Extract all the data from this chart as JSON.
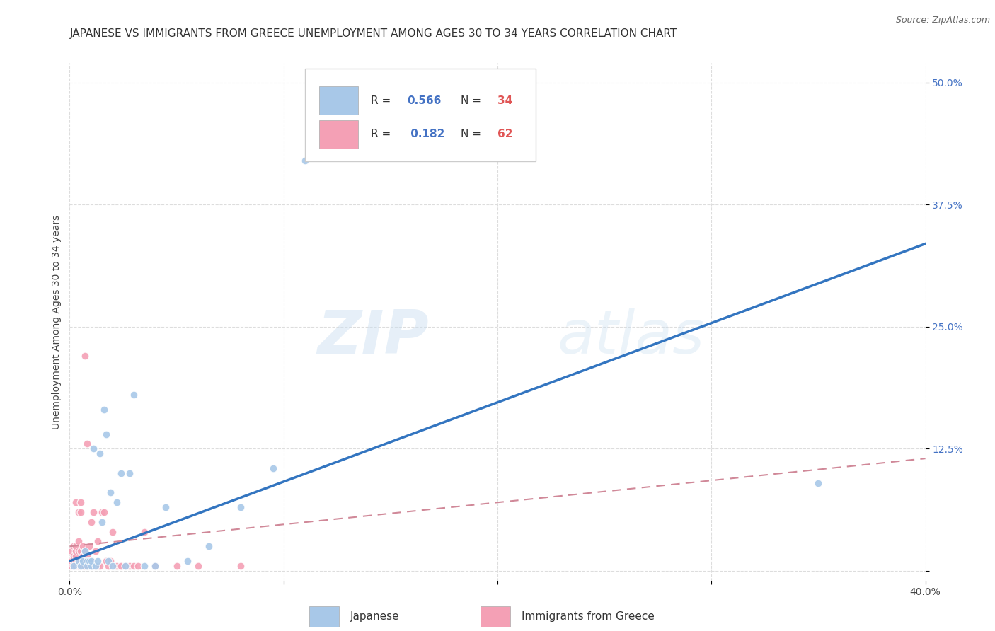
{
  "title": "JAPANESE VS IMMIGRANTS FROM GREECE UNEMPLOYMENT AMONG AGES 30 TO 34 YEARS CORRELATION CHART",
  "source": "Source: ZipAtlas.com",
  "ylabel": "Unemployment Among Ages 30 to 34 years",
  "xlim": [
    0.0,
    0.4
  ],
  "ylim": [
    -0.01,
    0.52
  ],
  "legend_R1": "0.566",
  "legend_N1": "34",
  "legend_R2": "0.182",
  "legend_N2": "62",
  "color_japanese": "#a8c8e8",
  "color_greece": "#f4a0b5",
  "color_japanese_line": "#3375c0",
  "color_greece_line": "#d08898",
  "watermark_zip": "ZIP",
  "watermark_atlas": "atlas",
  "japanese_x": [
    0.002,
    0.004,
    0.005,
    0.006,
    0.007,
    0.008,
    0.008,
    0.009,
    0.01,
    0.01,
    0.011,
    0.012,
    0.013,
    0.014,
    0.015,
    0.016,
    0.017,
    0.018,
    0.019,
    0.02,
    0.022,
    0.024,
    0.026,
    0.028,
    0.03,
    0.035,
    0.04,
    0.045,
    0.055,
    0.065,
    0.08,
    0.095,
    0.11,
    0.35
  ],
  "japanese_y": [
    0.005,
    0.01,
    0.005,
    0.01,
    0.02,
    0.01,
    0.005,
    0.01,
    0.005,
    0.01,
    0.125,
    0.005,
    0.01,
    0.12,
    0.05,
    0.165,
    0.14,
    0.01,
    0.08,
    0.005,
    0.07,
    0.1,
    0.005,
    0.1,
    0.18,
    0.005,
    0.005,
    0.065,
    0.01,
    0.025,
    0.065,
    0.105,
    0.42,
    0.09
  ],
  "greek_x": [
    0.001,
    0.001,
    0.001,
    0.002,
    0.002,
    0.002,
    0.002,
    0.003,
    0.003,
    0.003,
    0.003,
    0.003,
    0.003,
    0.004,
    0.004,
    0.004,
    0.004,
    0.004,
    0.005,
    0.005,
    0.005,
    0.005,
    0.005,
    0.006,
    0.006,
    0.006,
    0.007,
    0.007,
    0.007,
    0.007,
    0.008,
    0.008,
    0.008,
    0.009,
    0.009,
    0.01,
    0.01,
    0.01,
    0.011,
    0.011,
    0.012,
    0.012,
    0.013,
    0.013,
    0.014,
    0.015,
    0.016,
    0.017,
    0.018,
    0.019,
    0.02,
    0.022,
    0.024,
    0.026,
    0.028,
    0.03,
    0.032,
    0.035,
    0.04,
    0.05,
    0.06,
    0.08
  ],
  "greek_y": [
    0.005,
    0.01,
    0.02,
    0.005,
    0.01,
    0.015,
    0.025,
    0.005,
    0.01,
    0.015,
    0.02,
    0.025,
    0.07,
    0.005,
    0.01,
    0.02,
    0.03,
    0.06,
    0.005,
    0.01,
    0.02,
    0.06,
    0.07,
    0.005,
    0.015,
    0.025,
    0.005,
    0.01,
    0.02,
    0.22,
    0.005,
    0.015,
    0.13,
    0.005,
    0.025,
    0.005,
    0.01,
    0.05,
    0.005,
    0.06,
    0.005,
    0.02,
    0.005,
    0.03,
    0.005,
    0.06,
    0.06,
    0.01,
    0.005,
    0.01,
    0.04,
    0.005,
    0.005,
    0.005,
    0.005,
    0.005,
    0.005,
    0.04,
    0.005,
    0.005,
    0.005,
    0.005
  ],
  "japanese_line_x": [
    0.0,
    0.4
  ],
  "japanese_line_y": [
    0.01,
    0.335
  ],
  "greek_line_x": [
    0.0,
    0.4
  ],
  "greek_line_y": [
    0.025,
    0.115
  ],
  "grid_color": "#dddddd",
  "background_color": "#ffffff",
  "title_fontsize": 11,
  "label_fontsize": 10,
  "tick_fontsize": 10,
  "marker_size": 60
}
